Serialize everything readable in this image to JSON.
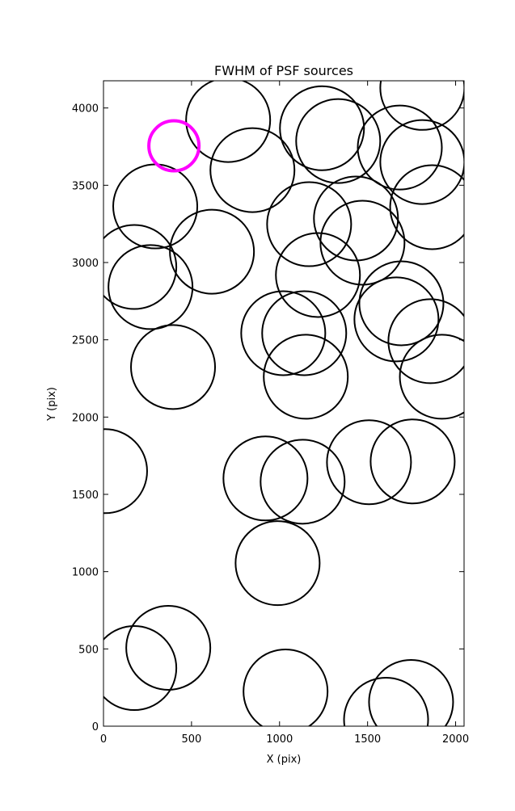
{
  "chart_data": {
    "type": "scatter",
    "title": "FWHM of PSF sources",
    "x_label": "X (pix)",
    "y_label": "Y (pix)",
    "xlim": [
      0,
      2048
    ],
    "ylim": [
      0,
      4176
    ],
    "xticks": [
      0,
      500,
      1000,
      1500,
      2000
    ],
    "yticks": [
      0,
      500,
      1000,
      1500,
      2000,
      2500,
      3000,
      3500,
      4000
    ],
    "marker": "open-circle",
    "series": [
      {
        "color": "#000000",
        "x": [
          1811,
          708,
          1241,
          1333,
          1683,
          1811,
          846,
          294,
          1867,
          1168,
          1434,
          1471,
          616,
          175,
          267,
          1218,
          1692,
          1664,
          1021,
          1140,
          1857,
          395,
          1149,
          1922,
          9,
          920,
          1131,
          1508,
          1756,
          989,
          368,
          175,
          1034,
          1747,
          1605
        ],
        "values": [
          4130,
          3922,
          3869,
          3786,
          3744,
          3650,
          3598,
          3363,
          3358,
          3248,
          3285,
          3128,
          3070,
          2971,
          2841,
          2919,
          2736,
          2632,
          2543,
          2543,
          2491,
          2324,
          2261,
          2261,
          1650,
          1603,
          1582,
          1708,
          1713,
          1055,
          507,
          376,
          225,
          157,
          42
        ]
      },
      {
        "color": "#ff00ff",
        "x": [
          400
        ],
        "values": [
          3755
        ]
      }
    ]
  }
}
